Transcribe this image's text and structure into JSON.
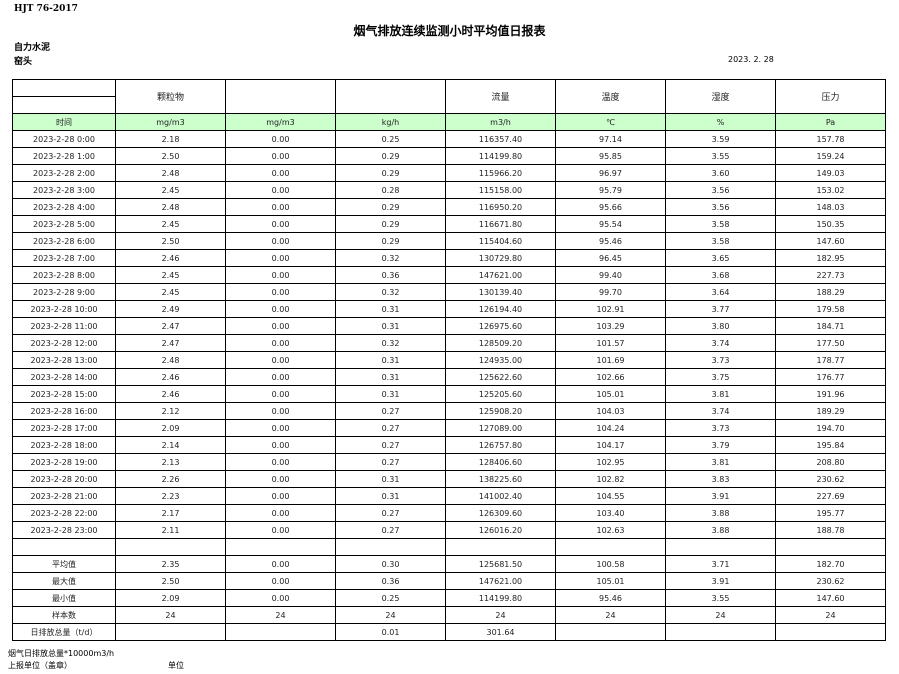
{
  "standard": "HJT   76-2017",
  "title": "烟气排放连续监测小时平均值日报表",
  "company": "自力水泥",
  "unit_name": "窑头",
  "date": "2023. 2. 28",
  "headers": [
    "",
    "颗粒物",
    "",
    "",
    "流量",
    "温度",
    "湿度",
    "压力"
  ],
  "units": [
    "时间",
    "mg/m3",
    "mg/m3",
    "kg/h",
    "m3/h",
    "℃",
    "%",
    "Pa"
  ],
  "rows": [
    [
      "2023-2-28 0:00",
      "2.18",
      "0.00",
      "0.25",
      "116357.40",
      "97.14",
      "3.59",
      "157.78"
    ],
    [
      "2023-2-28 1:00",
      "2.50",
      "0.00",
      "0.29",
      "114199.80",
      "95.85",
      "3.55",
      "159.24"
    ],
    [
      "2023-2-28 2:00",
      "2.48",
      "0.00",
      "0.29",
      "115966.20",
      "96.97",
      "3.60",
      "149.03"
    ],
    [
      "2023-2-28 3:00",
      "2.45",
      "0.00",
      "0.28",
      "115158.00",
      "95.79",
      "3.56",
      "153.02"
    ],
    [
      "2023-2-28 4:00",
      "2.48",
      "0.00",
      "0.29",
      "116950.20",
      "95.66",
      "3.56",
      "148.03"
    ],
    [
      "2023-2-28 5:00",
      "2.45",
      "0.00",
      "0.29",
      "116671.80",
      "95.54",
      "3.58",
      "150.35"
    ],
    [
      "2023-2-28 6:00",
      "2.50",
      "0.00",
      "0.29",
      "115404.60",
      "95.46",
      "3.58",
      "147.60"
    ],
    [
      "2023-2-28 7:00",
      "2.46",
      "0.00",
      "0.32",
      "130729.80",
      "96.45",
      "3.65",
      "182.95"
    ],
    [
      "2023-2-28 8:00",
      "2.45",
      "0.00",
      "0.36",
      "147621.00",
      "99.40",
      "3.68",
      "227.73"
    ],
    [
      "2023-2-28 9:00",
      "2.45",
      "0.00",
      "0.32",
      "130139.40",
      "99.70",
      "3.64",
      "188.29"
    ],
    [
      "2023-2-28 10:00",
      "2.49",
      "0.00",
      "0.31",
      "126194.40",
      "102.91",
      "3.77",
      "179.58"
    ],
    [
      "2023-2-28 11:00",
      "2.47",
      "0.00",
      "0.31",
      "126975.60",
      "103.29",
      "3.80",
      "184.71"
    ],
    [
      "2023-2-28 12:00",
      "2.47",
      "0.00",
      "0.32",
      "128509.20",
      "101.57",
      "3.74",
      "177.50"
    ],
    [
      "2023-2-28 13:00",
      "2.48",
      "0.00",
      "0.31",
      "124935.00",
      "101.69",
      "3.73",
      "178.77"
    ],
    [
      "2023-2-28 14:00",
      "2.46",
      "0.00",
      "0.31",
      "125622.60",
      "102.66",
      "3.75",
      "176.77"
    ],
    [
      "2023-2-28 15:00",
      "2.46",
      "0.00",
      "0.31",
      "125205.60",
      "105.01",
      "3.81",
      "191.96"
    ],
    [
      "2023-2-28 16:00",
      "2.12",
      "0.00",
      "0.27",
      "125908.20",
      "104.03",
      "3.74",
      "189.29"
    ],
    [
      "2023-2-28 17:00",
      "2.09",
      "0.00",
      "0.27",
      "127089.00",
      "104.24",
      "3.73",
      "194.70"
    ],
    [
      "2023-2-28 18:00",
      "2.14",
      "0.00",
      "0.27",
      "126757.80",
      "104.17",
      "3.79",
      "195.84"
    ],
    [
      "2023-2-28 19:00",
      "2.13",
      "0.00",
      "0.27",
      "128406.60",
      "102.95",
      "3.81",
      "208.80"
    ],
    [
      "2023-2-28 20:00",
      "2.26",
      "0.00",
      "0.31",
      "138225.60",
      "102.82",
      "3.83",
      "230.62"
    ],
    [
      "2023-2-28 21:00",
      "2.23",
      "0.00",
      "0.31",
      "141002.40",
      "104.55",
      "3.91",
      "227.69"
    ],
    [
      "2023-2-28 22:00",
      "2.17",
      "0.00",
      "0.27",
      "126309.60",
      "103.40",
      "3.88",
      "195.77"
    ],
    [
      "2023-2-28 23:00",
      "2.11",
      "0.00",
      "0.27",
      "126016.20",
      "102.63",
      "3.88",
      "188.78"
    ]
  ],
  "summary": [
    [
      "平均值",
      "2.35",
      "0.00",
      "0.30",
      "125681.50",
      "100.58",
      "3.71",
      "182.70"
    ],
    [
      "最大值",
      "2.50",
      "0.00",
      "0.36",
      "147621.00",
      "105.01",
      "3.91",
      "230.62"
    ],
    [
      "最小值",
      "2.09",
      "0.00",
      "0.25",
      "114199.80",
      "95.46",
      "3.55",
      "147.60"
    ],
    [
      "样本数",
      "24",
      "24",
      "24",
      "24",
      "24",
      "24",
      "24"
    ],
    [
      "日排放总量（t/d）",
      "",
      "",
      "0.01",
      "301.64",
      "",
      "",
      ""
    ]
  ],
  "footer": {
    "note": "烟气日排放总量*10000m3/h",
    "reporter_label": "上报单位（盖章）",
    "unit_label": "单位"
  }
}
